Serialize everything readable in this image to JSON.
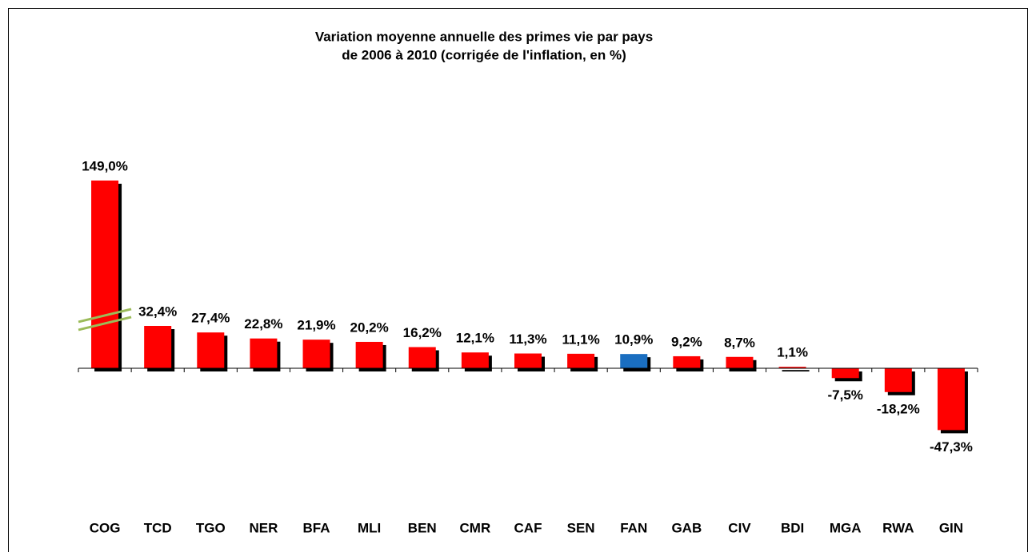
{
  "chart_data": {
    "type": "bar",
    "title": [
      "Variation moyenne annuelle des primes vie par pays",
      "de 2006 à 2010 (corrigée de l'inflation, en %)"
    ],
    "categories": [
      "COG",
      "TCD",
      "TGO",
      "NER",
      "BFA",
      "MLI",
      "BEN",
      "CMR",
      "CAF",
      "SEN",
      "FAN",
      "GAB",
      "CIV",
      "BDI",
      "MGA",
      "RWA",
      "GIN"
    ],
    "values": [
      149.0,
      32.4,
      27.4,
      22.8,
      21.9,
      20.2,
      16.2,
      12.1,
      11.3,
      11.1,
      10.9,
      9.2,
      8.7,
      1.1,
      -7.5,
      -18.2,
      -47.3
    ],
    "value_labels": [
      "149,0%",
      "32,4%",
      "27,4%",
      "22,8%",
      "21,9%",
      "20,2%",
      "16,2%",
      "12,1%",
      "11,3%",
      "11,1%",
      "10,9%",
      "9,2%",
      "8,7%",
      "1,1%",
      "-7,5%",
      "-18,2%",
      "-47,3%"
    ],
    "colors": [
      "#ff0000",
      "#ff0000",
      "#ff0000",
      "#ff0000",
      "#ff0000",
      "#ff0000",
      "#ff0000",
      "#ff0000",
      "#ff0000",
      "#ff0000",
      "#1a6ec0",
      "#ff0000",
      "#ff0000",
      "#ff0000",
      "#ff0000",
      "#ff0000",
      "#ff0000"
    ],
    "axis_break": true
  }
}
